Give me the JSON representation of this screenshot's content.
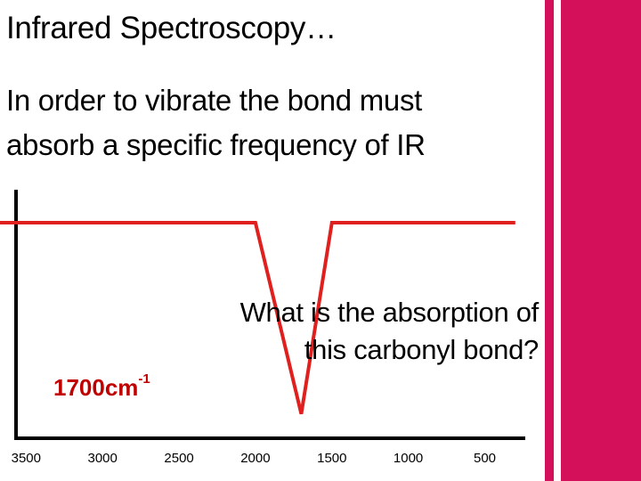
{
  "slide": {
    "title": "Infrared Spectroscopy…",
    "body_line1": "In order to vibrate the bond must",
    "body_line2": "absorb a specific frequency of IR",
    "question_line1": "What is the absorption of",
    "question_line2": "this carbonyl bond?",
    "answer_value": "1700cm",
    "answer_exponent": "-1"
  },
  "colors": {
    "accent": "#d5105a",
    "spectrum_line": "#e0201e",
    "answer_text": "#c00000",
    "axis": "#000000"
  },
  "chart_data": {
    "type": "line",
    "x_tick_labels": [
      "3500",
      "3000",
      "2500",
      "2000",
      "1500",
      "1000",
      "500"
    ],
    "x_ticks": [
      3500,
      3000,
      2500,
      2000,
      1500,
      1000,
      500
    ],
    "xlim": [
      3700,
      200
    ],
    "x_reversed": true,
    "ylim": [
      0,
      100
    ],
    "grid": false,
    "series": [
      {
        "x": [
          3700,
          2000,
          1700,
          1500,
          300
        ],
        "y": [
          100,
          100,
          5,
          100,
          100
        ]
      }
    ]
  }
}
